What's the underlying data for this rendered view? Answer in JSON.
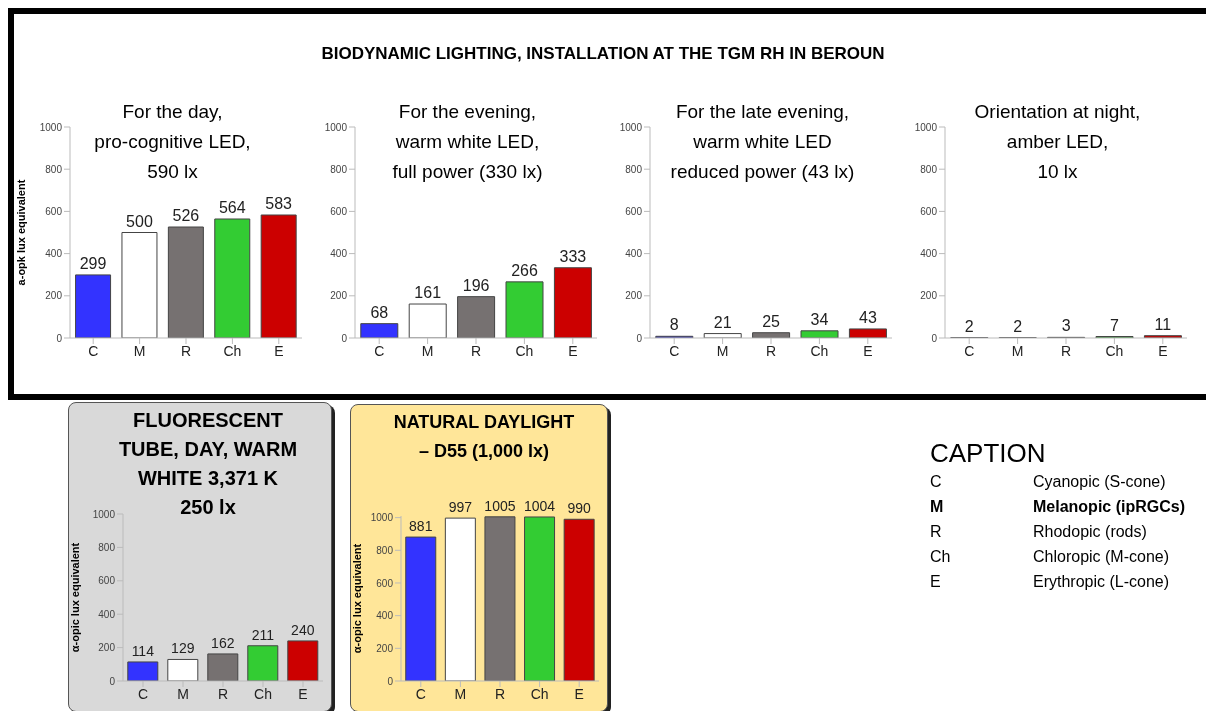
{
  "chart_data": [
    {
      "type": "other",
      "title": "BIODYNAMIC LIGHTING, INSTALLATION AT THE TGM RH IN BEROUN"
    },
    {
      "type": "bar",
      "title": "For the day,\npro-cognitive LED,\n590 lx",
      "ylabel": "a-opk lux equivalent",
      "categories": [
        "C",
        "M",
        "R",
        "Ch",
        "E"
      ],
      "values": [
        299,
        500,
        526,
        564,
        583
      ],
      "colors": [
        "#3333ff",
        "#ffffff",
        "#767171",
        "#33cc33",
        "#cc0000"
      ],
      "ylim": [
        0,
        1000
      ],
      "yticks": [
        0,
        200,
        400,
        600,
        800,
        1000
      ],
      "data_labels": true
    },
    {
      "type": "bar",
      "title": "For the evening,\nwarm white LED,\nfull power (330 lx)",
      "categories": [
        "C",
        "M",
        "R",
        "Ch",
        "E"
      ],
      "values": [
        68,
        161,
        196,
        266,
        333
      ],
      "colors": [
        "#3333ff",
        "#ffffff",
        "#767171",
        "#33cc33",
        "#cc0000"
      ],
      "ylim": [
        0,
        1000
      ],
      "yticks": [
        0,
        200,
        400,
        600,
        800,
        1000
      ],
      "data_labels": true
    },
    {
      "type": "bar",
      "title": "For the late evening,\nwarm white LED\nreduced power (43 lx)",
      "categories": [
        "C",
        "M",
        "R",
        "Ch",
        "E"
      ],
      "values": [
        8,
        21,
        25,
        34,
        43
      ],
      "colors": [
        "#3333ff",
        "#ffffff",
        "#767171",
        "#33cc33",
        "#cc0000"
      ],
      "ylim": [
        0,
        1000
      ],
      "yticks": [
        0,
        200,
        400,
        600,
        800,
        1000
      ],
      "data_labels": true
    },
    {
      "type": "bar",
      "title": "Orientation at night,\namber LED,\n10 lx",
      "categories": [
        "C",
        "M",
        "R",
        "Ch",
        "E"
      ],
      "values": [
        2,
        2,
        3,
        7,
        11
      ],
      "colors": [
        "#3333ff",
        "#ffffff",
        "#767171",
        "#33cc33",
        "#cc0000"
      ],
      "ylim": [
        0,
        1000
      ],
      "yticks": [
        0,
        200,
        400,
        600,
        800,
        1000
      ],
      "data_labels": true
    },
    {
      "type": "bar",
      "title": "FLUORESCENT\nTUBE, DAY, WARM\nWHITE 3,371 K\n250 lx",
      "ylabel": "α-opic  lux equivalent",
      "categories": [
        "C",
        "M",
        "R",
        "Ch",
        "E"
      ],
      "values": [
        114,
        129,
        162,
        211,
        240
      ],
      "colors": [
        "#3333ff",
        "#ffffff",
        "#767171",
        "#33cc33",
        "#cc0000"
      ],
      "ylim": [
        0,
        1000
      ],
      "yticks": [
        0,
        200,
        400,
        600,
        800,
        1000
      ],
      "data_labels": true
    },
    {
      "type": "bar",
      "title": "NATURAL DAYLIGHT\n– D55 (1,000 lx)",
      "ylabel": "α-opic  lux equivalent",
      "categories": [
        "C",
        "M",
        "R",
        "Ch",
        "E"
      ],
      "values": [
        881,
        997,
        1005,
        1004,
        990
      ],
      "colors": [
        "#3333ff",
        "#ffffff",
        "#767171",
        "#33cc33",
        "#cc0000"
      ],
      "ylim": [
        0,
        1010
      ],
      "yticks": [
        0,
        200,
        400,
        600,
        800,
        1000
      ],
      "data_labels": true
    },
    {
      "type": "other",
      "title": "CAPTION",
      "categories": [
        "C",
        "M",
        "R",
        "Ch",
        "E"
      ],
      "annotations": [
        "Cyanopic (S-cone)",
        "Melanopic (ipRGCs)",
        "Rhodopic (rods)",
        "Chloropic (M-cone)",
        "Erythropic (L-cone)"
      ]
    }
  ]
}
